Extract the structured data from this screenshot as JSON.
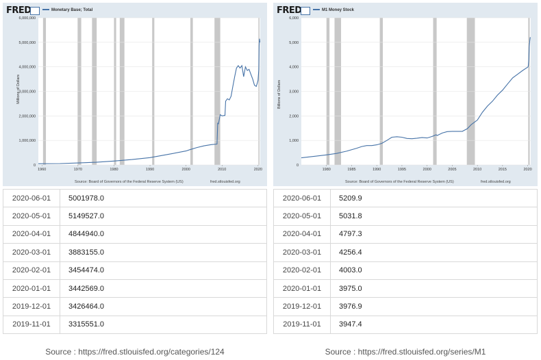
{
  "left": {
    "logo": "FRED",
    "legend": "Monetary Base; Total",
    "ylabel": "Millions of Dollars",
    "source_note": "Source: Board of Governors of the Federal Reserve System (US)",
    "source_url": "fred.stlouisfed.org",
    "footer": "Source : https://fred.stlouisfed.org/categories/124",
    "rows": [
      {
        "date": "2020-06-01",
        "value": "5001978.0"
      },
      {
        "date": "2020-05-01",
        "value": "5149527.0"
      },
      {
        "date": "2020-04-01",
        "value": "4844940.0"
      },
      {
        "date": "2020-03-01",
        "value": "3883155.0"
      },
      {
        "date": "2020-02-01",
        "value": "3454474.0"
      },
      {
        "date": "2020-01-01",
        "value": "3442569.0"
      },
      {
        "date": "2019-12-01",
        "value": "3426464.0"
      },
      {
        "date": "2019-11-01",
        "value": "3315551.0"
      }
    ]
  },
  "right": {
    "logo": "FRED",
    "legend": "M1 Money Stock",
    "ylabel": "Billions of Dollars",
    "source_note": "Source: Board of Governors of the Federal Reserve System (US)",
    "source_url": "fred.stlouisfed.org",
    "footer": "Source : https://fred.stlouisfed.org/series/M1",
    "rows": [
      {
        "date": "2020-06-01",
        "value": "5209.9"
      },
      {
        "date": "2020-05-01",
        "value": "5031.8"
      },
      {
        "date": "2020-04-01",
        "value": "4797.3"
      },
      {
        "date": "2020-03-01",
        "value": "4256.4"
      },
      {
        "date": "2020-02-01",
        "value": "4003.0"
      },
      {
        "date": "2020-01-01",
        "value": "3975.0"
      },
      {
        "date": "2019-12-01",
        "value": "3976.9"
      },
      {
        "date": "2019-11-01",
        "value": "3947.4"
      }
    ]
  },
  "chart_data": [
    {
      "type": "line",
      "title": "",
      "xlabel": "",
      "ylabel": "Millions of Dollars",
      "line_color": "#4572a7",
      "background_color": "#e1e9f0",
      "recession_color": "#c8c8c8",
      "grid": true,
      "xlim": [
        1959,
        2020.6
      ],
      "ylim": [
        0,
        6000000
      ],
      "x_ticks": [
        1960,
        1970,
        1980,
        1990,
        2000,
        2010,
        2020
      ],
      "y_ticks": [
        0,
        1000000,
        2000000,
        3000000,
        4000000,
        5000000,
        6000000
      ],
      "y_tick_labels": [
        "0",
        "1,000,000",
        "2,000,000",
        "3,000,000",
        "4,000,000",
        "5,000,000",
        "6,000,000"
      ],
      "recessions": [
        [
          1960.3,
          1961.1
        ],
        [
          1969.9,
          1970.9
        ],
        [
          1973.9,
          1975.2
        ],
        [
          1980.0,
          1980.6
        ],
        [
          1981.6,
          1982.9
        ],
        [
          1990.6,
          1991.2
        ],
        [
          2001.2,
          2001.9
        ],
        [
          2007.9,
          2009.5
        ],
        [
          2020.1,
          2020.4
        ]
      ],
      "series": [
        {
          "name": "Monetary Base; Total",
          "x": [
            1959,
            1965,
            1970,
            1975,
            1980,
            1985,
            1990,
            1995,
            2000,
            2001,
            2003,
            2005,
            2007,
            2008.6,
            2008.8,
            2009,
            2009.5,
            2010,
            2010.8,
            2011,
            2011.5,
            2012,
            2012.5,
            2013,
            2013.5,
            2014,
            2014.5,
            2015,
            2015.5,
            2016,
            2016.5,
            2017,
            2017.5,
            2018,
            2018.5,
            2019,
            2019.5,
            2019.8,
            2020,
            2020.2,
            2020.3,
            2020.4,
            2020.5
          ],
          "y": [
            50000,
            55000,
            80000,
            110000,
            160000,
            220000,
            300000,
            430000,
            570000,
            620000,
            710000,
            780000,
            830000,
            850000,
            1700000,
            1680000,
            2050000,
            2000000,
            2020000,
            2600000,
            2700000,
            2650000,
            2800000,
            3200000,
            3600000,
            3950000,
            4050000,
            3950000,
            4050000,
            3600000,
            4000000,
            3850000,
            3900000,
            3700000,
            3500000,
            3250000,
            3200000,
            3350000,
            3450000,
            3880000,
            4850000,
            5150000,
            5000000
          ]
        }
      ]
    },
    {
      "type": "line",
      "title": "",
      "xlabel": "",
      "ylabel": "Billions of Dollars",
      "line_color": "#4572a7",
      "background_color": "#e1e9f0",
      "recession_color": "#c8c8c8",
      "grid": true,
      "xlim": [
        1975,
        2020.6
      ],
      "ylim": [
        0,
        6000
      ],
      "x_ticks": [
        1980,
        1985,
        1990,
        1995,
        2000,
        2005,
        2010,
        2015,
        2020
      ],
      "y_ticks": [
        0,
        1000,
        2000,
        3000,
        4000,
        5000,
        6000
      ],
      "y_tick_labels": [
        "0",
        "1,000",
        "2,000",
        "3,000",
        "4,000",
        "5,000",
        "6,000"
      ],
      "recessions": [
        [
          1980.0,
          1980.6
        ],
        [
          1981.6,
          1982.9
        ],
        [
          1990.6,
          1991.2
        ],
        [
          2001.2,
          2001.9
        ],
        [
          2007.9,
          2009.5
        ],
        [
          2020.1,
          2020.4
        ]
      ],
      "series": [
        {
          "name": "M1 Money Stock",
          "x": [
            1975,
            1978,
            1980,
            1982,
            1984,
            1986,
            1987,
            1988,
            1989,
            1990,
            1991,
            1992,
            1993,
            1994,
            1995,
            1996,
            1997,
            1998,
            1999,
            2000,
            2001,
            2001.8,
            2002,
            2003,
            2004,
            2005,
            2006,
            2007,
            2008,
            2008.8,
            2009,
            2010,
            2011,
            2012,
            2013,
            2014,
            2015,
            2016,
            2017,
            2018,
            2019,
            2019.9,
            2020.1,
            2020.2,
            2020.3,
            2020.4,
            2020.5
          ],
          "y": [
            290,
            360,
            410,
            470,
            560,
            680,
            750,
            790,
            790,
            820,
            880,
            1000,
            1130,
            1150,
            1130,
            1080,
            1070,
            1090,
            1120,
            1100,
            1160,
            1230,
            1200,
            1300,
            1360,
            1370,
            1370,
            1370,
            1480,
            1650,
            1680,
            1830,
            2150,
            2400,
            2600,
            2850,
            3050,
            3300,
            3550,
            3700,
            3850,
            3975,
            4003,
            4256,
            4797,
            5032,
            5210
          ]
        }
      ]
    }
  ]
}
